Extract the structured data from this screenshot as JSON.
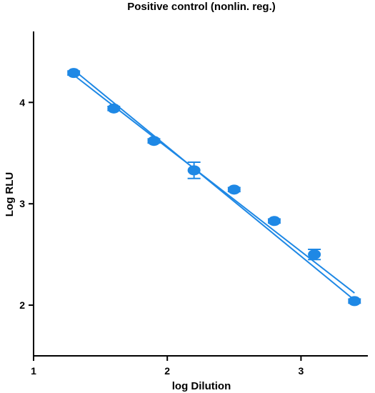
{
  "chart_data": {
    "type": "scatter",
    "title": "Positive control (nonlin. reg.)",
    "xlabel": "log Dilution",
    "ylabel": "Log RLU",
    "xlim": [
      1,
      3.5
    ],
    "ylim": [
      1.5,
      4.7
    ],
    "xticks": [
      1,
      2,
      3
    ],
    "yticks": [
      2,
      3,
      4
    ],
    "grid": false,
    "colors": {
      "series": "#1E88E5",
      "axis": "#000000"
    },
    "series": [
      {
        "points": [
          {
            "x": 1.3,
            "y": 4.29,
            "err": 0.02
          },
          {
            "x": 1.6,
            "y": 3.94,
            "err": 0.02
          },
          {
            "x": 1.9,
            "y": 3.62,
            "err": 0.02
          },
          {
            "x": 2.2,
            "y": 3.33,
            "err": 0.08
          },
          {
            "x": 2.5,
            "y": 3.14,
            "err": 0.02
          },
          {
            "x": 2.8,
            "y": 2.83,
            "err": 0.02
          },
          {
            "x": 3.1,
            "y": 2.5,
            "err": 0.05
          },
          {
            "x": 3.4,
            "y": 2.04,
            "err": 0.02
          }
        ]
      }
    ],
    "fits": [
      {
        "x": [
          1.3,
          3.4
        ],
        "y": [
          4.27,
          2.12
        ]
      },
      {
        "x": [
          1.3,
          3.4
        ],
        "y": [
          4.32,
          2.05
        ]
      }
    ]
  }
}
